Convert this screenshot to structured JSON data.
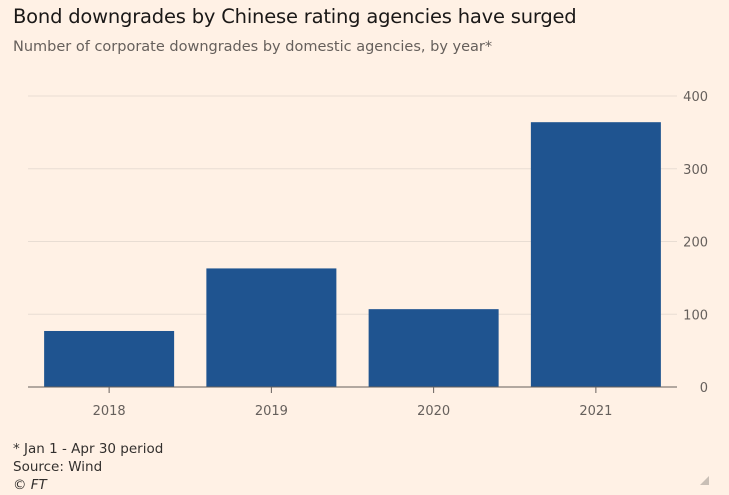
{
  "chart_data": {
    "type": "bar",
    "title": "Bond downgrades by Chinese rating agencies have surged",
    "subtitle": "Number of corporate downgrades by domestic agencies, by year*",
    "categories": [
      "2018",
      "2019",
      "2020",
      "2021"
    ],
    "values": [
      77,
      163,
      107,
      364
    ],
    "ylim": [
      0,
      400
    ],
    "yticks": [
      0,
      100,
      200,
      300,
      400
    ],
    "ytick_labels": [
      "0",
      "100",
      "200",
      "300",
      "400"
    ],
    "xlabel": "",
    "ylabel": "",
    "grid": true,
    "y_axis_side": "right",
    "bar_color": "#1f5490"
  },
  "footer": {
    "note": "* Jan 1 - Apr 30 period",
    "source": "Source: Wind",
    "brand": "© FT"
  }
}
